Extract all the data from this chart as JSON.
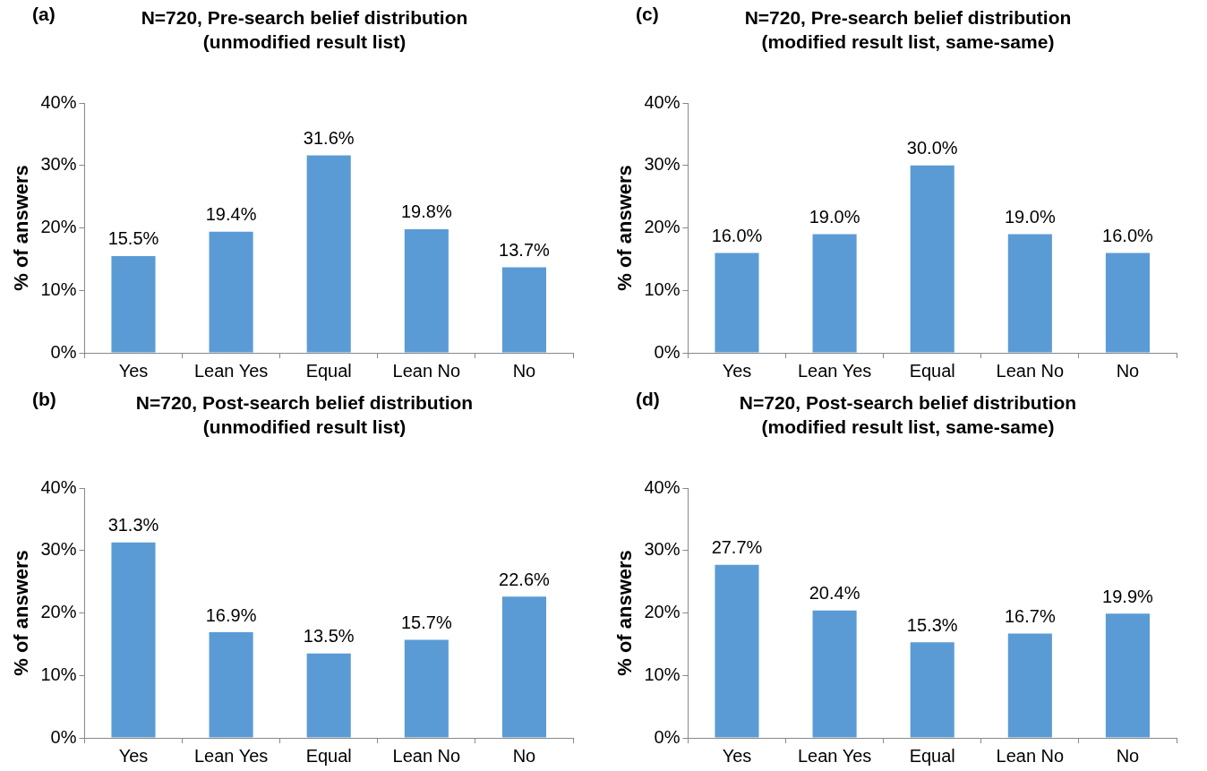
{
  "chart_data": [
    {
      "type": "bar",
      "title": "N=720, Pre-search belief distribution",
      "subtitle": "(unmodified result list)",
      "annotations": [
        "(a)"
      ],
      "ylabel": "% of answers",
      "categories": [
        "Yes",
        "Lean Yes",
        "Equal",
        "Lean No",
        "No"
      ],
      "values": [
        15.5,
        19.4,
        31.6,
        19.8,
        13.7
      ],
      "color": "#5b9bd5",
      "ylim": [
        0,
        40
      ],
      "yticks": [
        {
          "value": 0,
          "label": "0%"
        },
        {
          "value": 10,
          "label": "10%"
        },
        {
          "value": 20,
          "label": "20%"
        },
        {
          "value": 30,
          "label": "30%"
        },
        {
          "value": 40,
          "label": "40%"
        }
      ],
      "value_labels": [
        "15.5%",
        "19.4%",
        "31.6%",
        "19.8%",
        "13.7%"
      ],
      "grid": false,
      "legend": false
    },
    {
      "type": "bar",
      "title": "N=720, Pre-search belief distribution",
      "subtitle": "(modified result list, same-same)",
      "annotations": [
        "(c)"
      ],
      "ylabel": "% of answers",
      "categories": [
        "Yes",
        "Lean Yes",
        "Equal",
        "Lean No",
        "No"
      ],
      "values": [
        16.0,
        19.0,
        30.0,
        19.0,
        16.0
      ],
      "color": "#5b9bd5",
      "ylim": [
        0,
        40
      ],
      "yticks": [
        {
          "value": 0,
          "label": "0%"
        },
        {
          "value": 10,
          "label": "10%"
        },
        {
          "value": 20,
          "label": "20%"
        },
        {
          "value": 30,
          "label": "30%"
        },
        {
          "value": 40,
          "label": "40%"
        }
      ],
      "value_labels": [
        "16.0%",
        "19.0%",
        "30.0%",
        "19.0%",
        "16.0%"
      ],
      "grid": false,
      "legend": false
    },
    {
      "type": "bar",
      "title": "N=720, Post-search belief distribution",
      "subtitle": "(unmodified result list)",
      "annotations": [
        "(b)"
      ],
      "ylabel": "% of answers",
      "categories": [
        "Yes",
        "Lean Yes",
        "Equal",
        "Lean No",
        "No"
      ],
      "values": [
        31.3,
        16.9,
        13.5,
        15.7,
        22.6
      ],
      "color": "#5b9bd5",
      "ylim": [
        0,
        40
      ],
      "yticks": [
        {
          "value": 0,
          "label": "0%"
        },
        {
          "value": 10,
          "label": "10%"
        },
        {
          "value": 20,
          "label": "20%"
        },
        {
          "value": 30,
          "label": "30%"
        },
        {
          "value": 40,
          "label": "40%"
        }
      ],
      "value_labels": [
        "31.3%",
        "16.9%",
        "13.5%",
        "15.7%",
        "22.6%"
      ],
      "grid": false,
      "legend": false
    },
    {
      "type": "bar",
      "title": "N=720, Post-search belief distribution",
      "subtitle": "(modified result list, same-same)",
      "annotations": [
        "(d)"
      ],
      "ylabel": "% of answers",
      "categories": [
        "Yes",
        "Lean Yes",
        "Equal",
        "Lean No",
        "No"
      ],
      "values": [
        27.7,
        20.4,
        15.3,
        16.7,
        19.9
      ],
      "color": "#5b9bd5",
      "ylim": [
        0,
        40
      ],
      "yticks": [
        {
          "value": 0,
          "label": "0%"
        },
        {
          "value": 10,
          "label": "10%"
        },
        {
          "value": 20,
          "label": "20%"
        },
        {
          "value": 30,
          "label": "30%"
        },
        {
          "value": 40,
          "label": "40%"
        }
      ],
      "value_labels": [
        "27.7%",
        "20.4%",
        "15.3%",
        "16.7%",
        "19.9%"
      ],
      "grid": false,
      "legend": false
    }
  ]
}
